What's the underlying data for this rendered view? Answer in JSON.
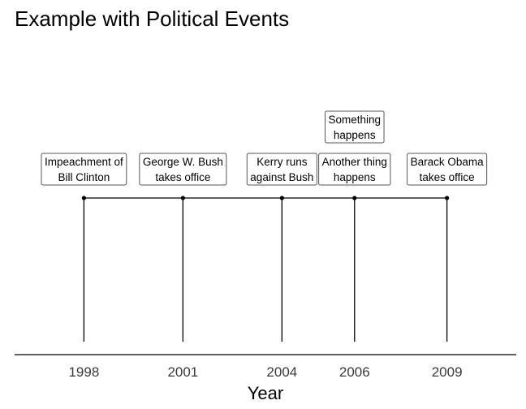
{
  "chart_data": {
    "type": "timeline",
    "title": "Example with Political Events",
    "xlabel": "Year",
    "ylabel": "",
    "xlim": [
      1995.9,
      2011.1
    ],
    "ticks": [
      "1998",
      "2001",
      "2004",
      "2006",
      "2009"
    ],
    "tick_values": [
      1998,
      2001,
      2004,
      2006.2,
      2009
    ],
    "grid": false,
    "events": [
      {
        "year": 1998,
        "lines": [
          "Impeachment of",
          "Bill Clinton"
        ],
        "level": 1
      },
      {
        "year": 2001,
        "lines": [
          "George W. Bush",
          "takes office"
        ],
        "level": 1
      },
      {
        "year": 2004,
        "lines": [
          "Kerry runs",
          "against Bush"
        ],
        "level": 1
      },
      {
        "year": 2006.2,
        "lines": [
          "Another thing",
          "happens"
        ],
        "level": 1
      },
      {
        "year": 2006.2,
        "lines": [
          "Something",
          "happens"
        ],
        "level": 2
      },
      {
        "year": 2009,
        "lines": [
          "Barack Obama",
          "takes office"
        ],
        "level": 1
      }
    ],
    "line_color": "#000000"
  }
}
